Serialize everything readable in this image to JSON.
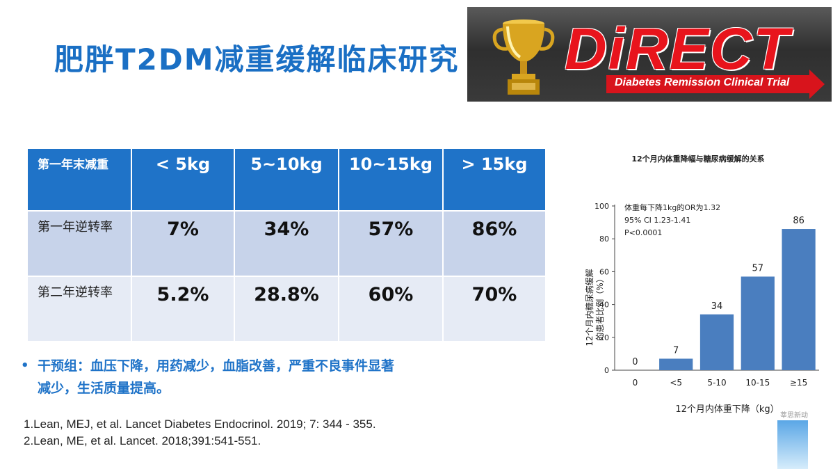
{
  "title": "肥胖T2DM减重缓解临床研究",
  "logo": {
    "word": "DiRECT",
    "subtitle": "Diabetes Remission Clinical Trial",
    "colors": {
      "red": "#e8141c",
      "gold": "#d9a520"
    }
  },
  "table": {
    "header": [
      "第一年末减重",
      "< 5kg",
      "5~10kg",
      "10~15kg",
      "> 15kg"
    ],
    "rows": [
      {
        "label": "第一年逆转率",
        "values": [
          "7%",
          "34%",
          "57%",
          "86%"
        ]
      },
      {
        "label": "第二年逆转率",
        "values": [
          "5.2%",
          "28.8%",
          "60%",
          "70%"
        ]
      }
    ],
    "colors": {
      "header": "#1f73c8",
      "row1": "#c7d3ea",
      "row2": "#e6ebf5"
    }
  },
  "bullet": {
    "line1": "干预组：血压下降，用药减少，血脂改善，严重不良事件显著",
    "line2": "减少，生活质量提高。"
  },
  "references": [
    "1.Lean, MEJ, et al. Lancet Diabetes Endocrinol. 2019; 7: 344 - 355.",
    "2.Lean, ME, et al. Lancet. 2018;391:541-551."
  ],
  "chart_data": {
    "type": "bar",
    "title": "12个月内体重降幅与糖尿病缓解的关系",
    "xlabel": "12个月内体重下降（kg）",
    "ylabel_line1": "12个月内糖尿病缓解",
    "ylabel_line2": "的患者比例（%）",
    "categories": [
      "0",
      "<5",
      "5-10",
      "10-15",
      "≥15"
    ],
    "values": [
      0,
      7,
      34,
      57,
      86
    ],
    "value_labels": [
      "0",
      "7",
      "34",
      "57",
      "86"
    ],
    "ylim": [
      0,
      100
    ],
    "yticks": [
      "0",
      "20",
      "40",
      "60",
      "80",
      "100"
    ],
    "ytick_values": [
      0,
      20,
      40,
      60,
      80,
      100
    ],
    "annotations": [
      "体重每下降1kg的OR为1.32",
      "95% CI 1.23-1.41",
      "P<0.0001"
    ],
    "bar_color": "#4a7ebf",
    "grid": false
  },
  "watermark": "莘思新动"
}
